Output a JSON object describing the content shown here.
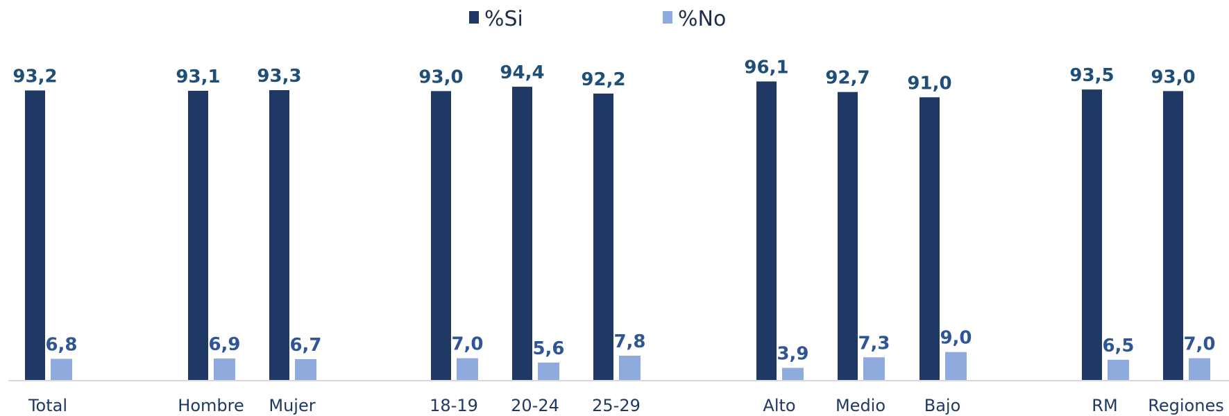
{
  "chart_data": {
    "type": "bar",
    "title": "",
    "xlabel": "",
    "ylabel": "",
    "ylim": [
      0,
      100
    ],
    "grid": false,
    "legend": "top-center",
    "categories": [
      "Total",
      "Hombre",
      "Mujer",
      "18-19",
      "20-24",
      "25-29",
      "Alto",
      "Medio",
      "Bajo",
      "RM",
      "Regiones"
    ],
    "series": [
      {
        "name": "%Si",
        "color": "#203864",
        "label_color": "#1f4e79",
        "values": [
          93.2,
          93.1,
          93.3,
          93.0,
          94.4,
          92.2,
          96.1,
          92.7,
          91.0,
          93.5,
          93.0
        ],
        "labels": [
          "93,2",
          "93,1",
          "93,3",
          "93,0",
          "94,4",
          "92,2",
          "96,1",
          "92,7",
          "91,0",
          "93,5",
          "93,0"
        ]
      },
      {
        "name": "%No",
        "color": "#8faadc",
        "label_color": "#2f5597",
        "values": [
          6.8,
          6.9,
          6.7,
          7.0,
          5.6,
          7.8,
          3.9,
          7.3,
          9.0,
          6.5,
          7.0
        ],
        "labels": [
          "6,8",
          "6,9",
          "6,7",
          "7,0",
          "5,6",
          "7,8",
          "3,9",
          "7,3",
          "9,0",
          "6,5",
          "7,0"
        ]
      }
    ]
  }
}
